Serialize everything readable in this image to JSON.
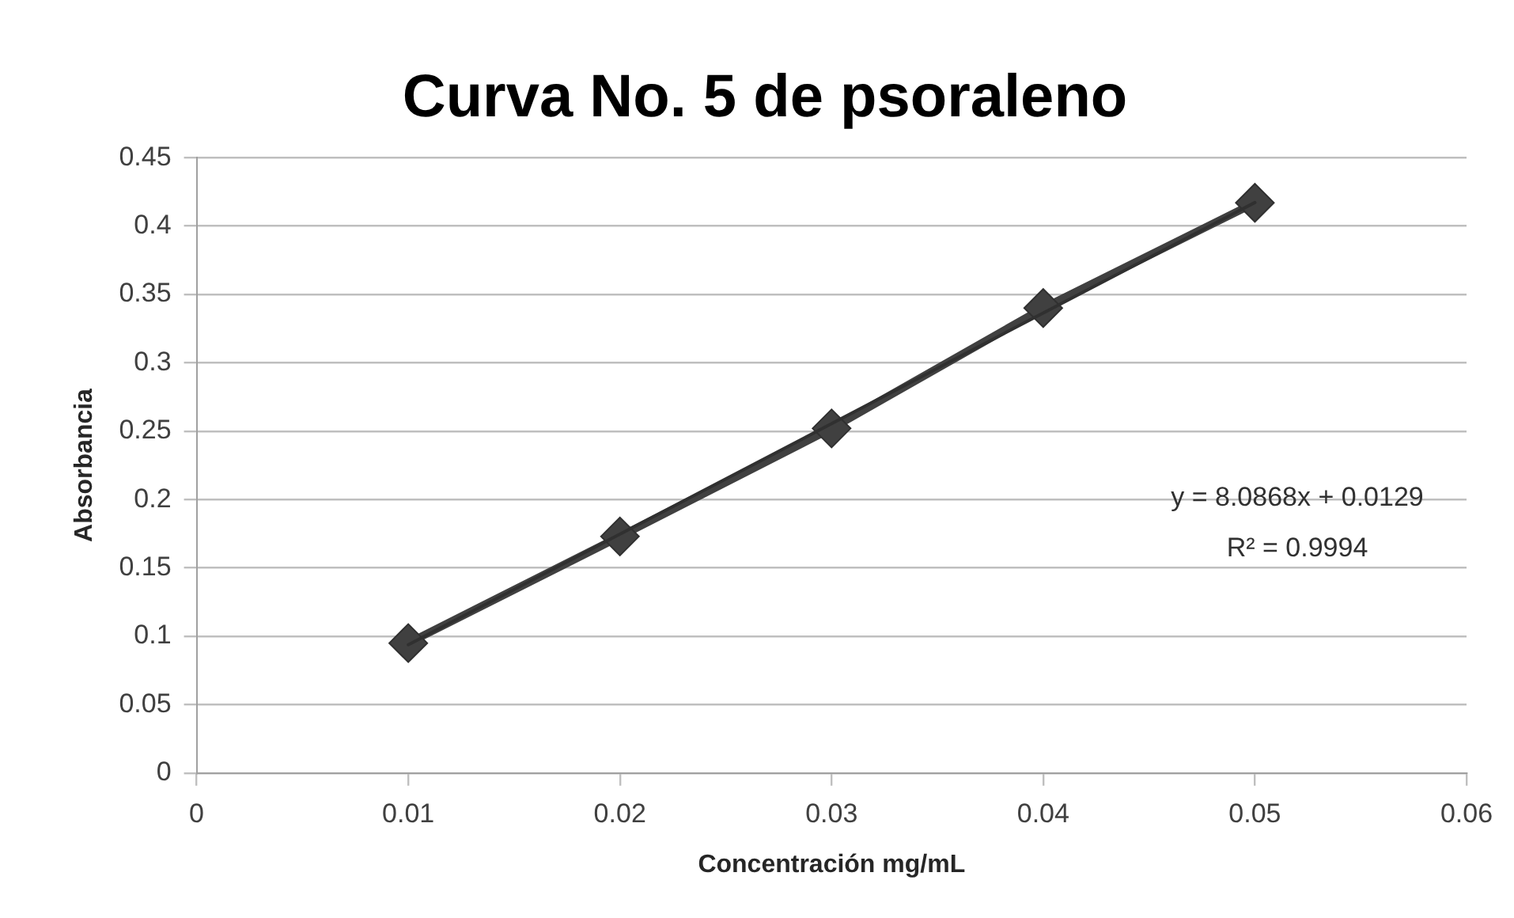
{
  "chart_data": {
    "type": "line",
    "title": "Curva No. 5 de psoraleno",
    "xlabel": "Concentración mg/mL",
    "ylabel": "Absorbancia",
    "x": [
      0.01,
      0.02,
      0.03,
      0.04,
      0.05
    ],
    "series": [
      {
        "color": "#404040",
        "values": [
          0.095,
          0.173,
          0.252,
          0.34,
          0.417
        ],
        "marker": "diamond"
      },
      {
        "type": "line",
        "color": "#303030",
        "x": [
          0.01,
          0.05
        ],
        "values": [
          0.0938,
          0.4172
        ],
        "marker": "none"
      }
    ],
    "xlim": [
      0,
      0.06
    ],
    "xticks": [
      0,
      0.01,
      0.02,
      0.03,
      0.04,
      0.05,
      0.06
    ],
    "ylim": [
      0,
      0.45
    ],
    "yticks": [
      0,
      0.05,
      0.1,
      0.15,
      0.2,
      0.25,
      0.3,
      0.35,
      0.4,
      0.45
    ],
    "grid": "y",
    "legend": false,
    "line_style": "solid",
    "annotations": [
      "y = 8.0868x + 0.0129",
      "R² = 0.9994"
    ]
  }
}
